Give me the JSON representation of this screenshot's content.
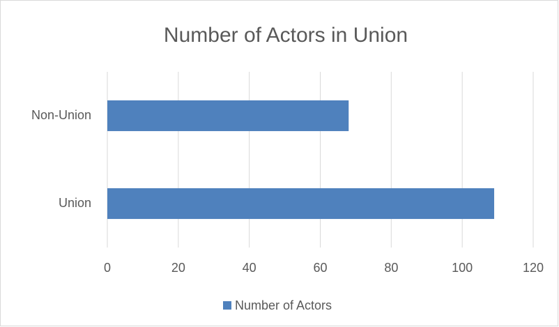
{
  "chart_data": {
    "type": "bar",
    "orientation": "horizontal",
    "title": "Number of Actors in Union",
    "categories": [
      "Non-Union",
      "Union"
    ],
    "series": [
      {
        "name": "Number of Actors",
        "color": "#4f81bd",
        "values": [
          68,
          109
        ]
      }
    ],
    "xlim": [
      0,
      120
    ],
    "xticks": [
      0,
      20,
      40,
      60,
      80,
      100,
      120
    ],
    "grid": true,
    "legend": "bottom"
  }
}
